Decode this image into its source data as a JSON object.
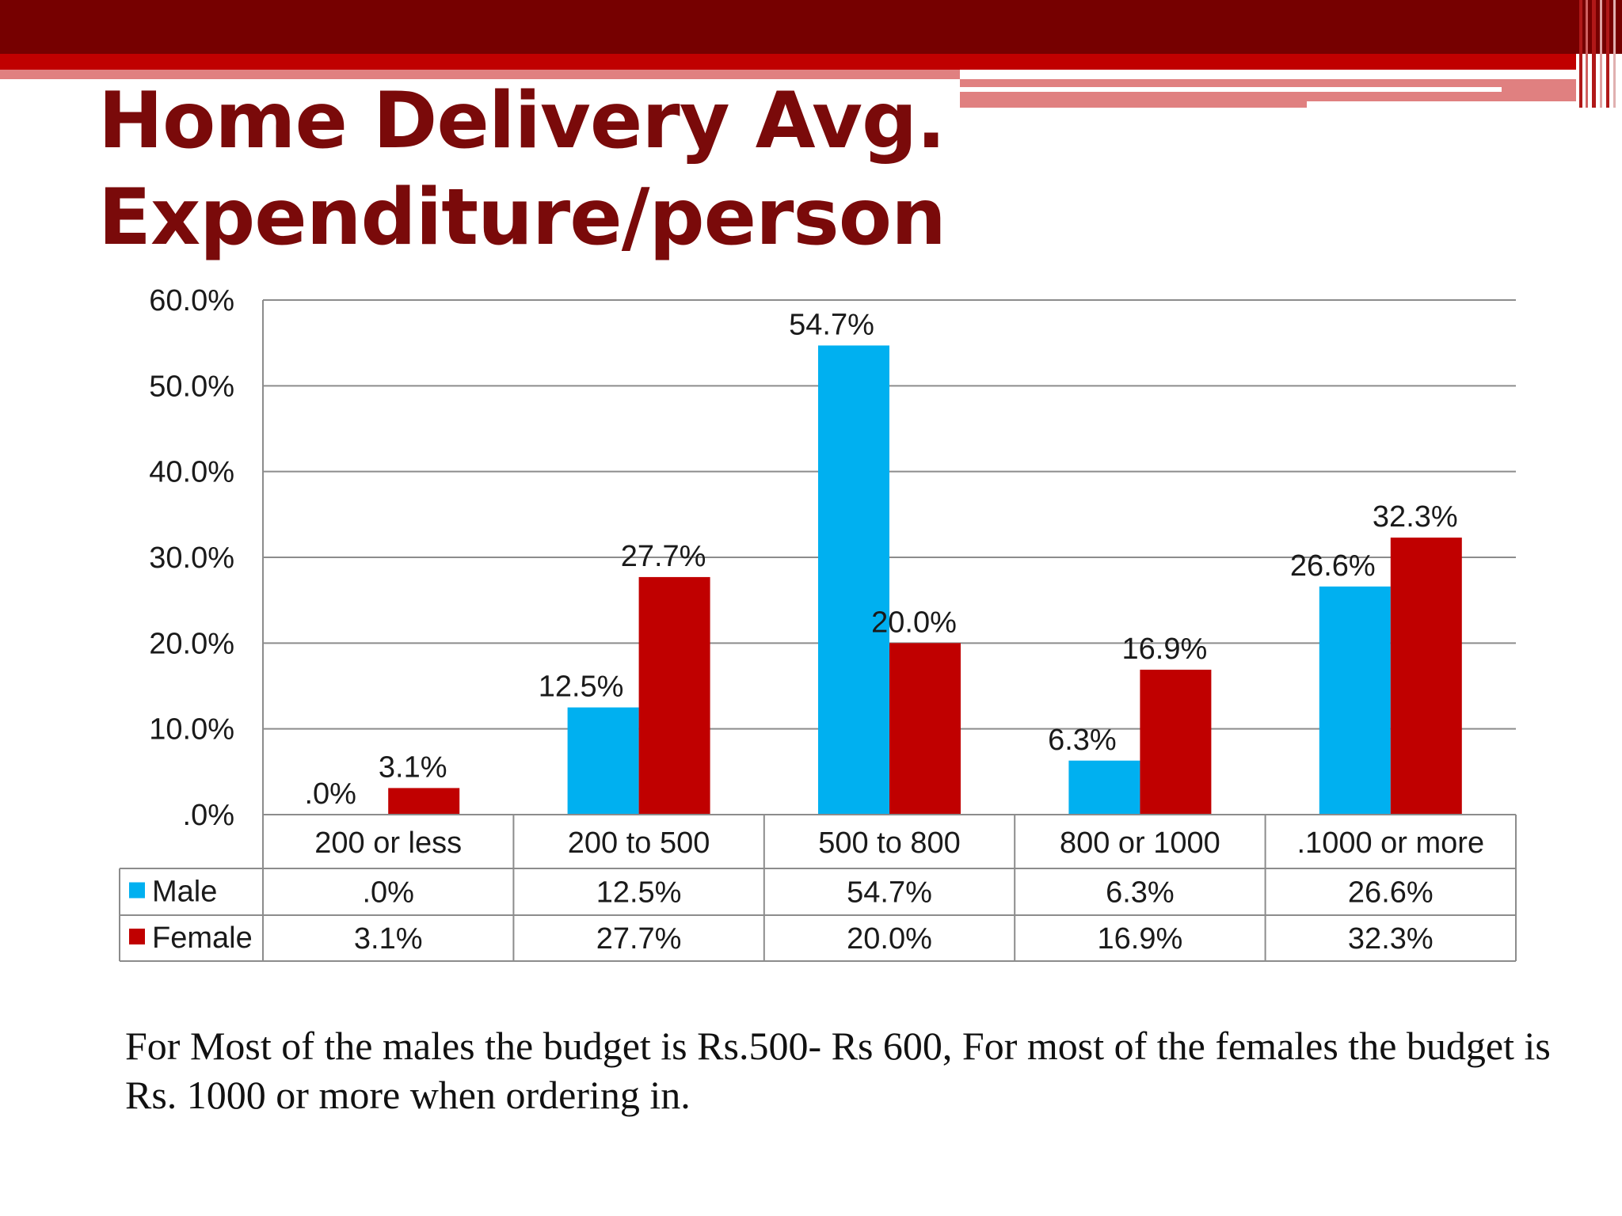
{
  "slide": {
    "title_lines": [
      "Home Delivery Avg.",
      "Expenditure/person"
    ],
    "caption": "For Most of the males the budget is Rs.500- Rs 600,  For most of the females the budget is Rs. 1000 or more when ordering in."
  },
  "theme": {
    "banner_dark": "#760000",
    "banner_red": "#c00000",
    "banner_light": "#e08080",
    "title_color": "#7a0a0a"
  },
  "chart_data": {
    "type": "bar",
    "title": "",
    "xlabel": "",
    "ylabel": "",
    "categories": [
      "200 or less",
      "200 to 500",
      "500 to 800",
      "800 or 1000",
      ".1000 or more"
    ],
    "series": [
      {
        "name": "Male",
        "color": "#00b0f0",
        "values": [
          0.0,
          12.5,
          54.7,
          6.3,
          26.6
        ],
        "labels": [
          ".0%",
          "12.5%",
          "54.7%",
          "6.3%",
          "26.6%"
        ]
      },
      {
        "name": "Female",
        "color": "#c00000",
        "values": [
          3.1,
          27.7,
          20.0,
          16.9,
          32.3
        ],
        "labels": [
          "3.1%",
          "27.7%",
          "20.0%",
          "16.9%",
          "32.3%"
        ]
      }
    ],
    "ylim": [
      0,
      60
    ],
    "yticks": [
      0,
      10,
      20,
      30,
      40,
      50,
      60
    ],
    "ytick_labels": [
      ".0%",
      "10.0%",
      "20.0%",
      "30.0%",
      "40.0%",
      "50.0%",
      "60.0%"
    ],
    "grid": true,
    "legend": "data table below chart"
  }
}
